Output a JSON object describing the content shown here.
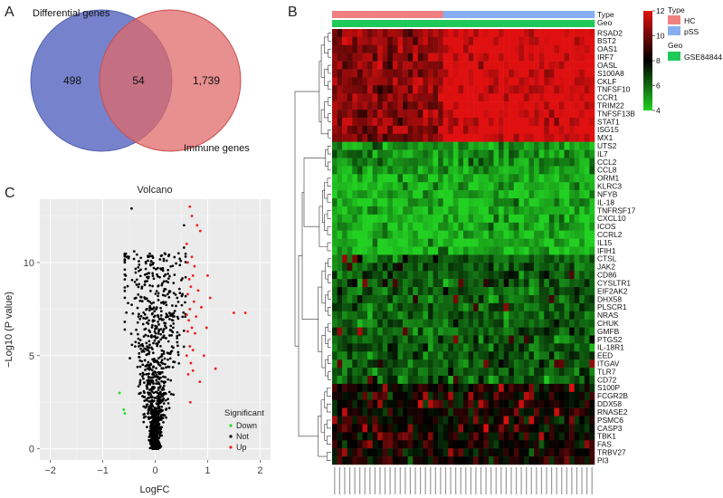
{
  "panels": {
    "a": "A",
    "b": "B",
    "c": "C"
  },
  "colors": {
    "set_differential": "#6a78c8",
    "set_immune": "#e06868",
    "heat_low": "#22d022",
    "heat_mid": "#000000",
    "heat_high": "#e01010",
    "type_hc": "#f08080",
    "type_pss": "#86aef0",
    "geo": "#1ec95a",
    "down": "#22dd22",
    "not": "#000000",
    "up": "#ee1c1c"
  },
  "chart_data": [
    {
      "type": "venn",
      "sets": [
        {
          "name": "Differential genes",
          "only": 498
        },
        {
          "name": "Immune genes",
          "only": 1739
        }
      ],
      "labels": {
        "left_only": "498",
        "intersection": "54",
        "right_only": "1,739"
      },
      "intersection": 54
    },
    {
      "type": "heatmap",
      "annotation_labels": [
        "Type",
        "Geo"
      ],
      "legend": {
        "color_scale": {
          "min": 4,
          "max": 12,
          "ticks": [
            "12",
            "10",
            "8",
            "6",
            "4"
          ]
        },
        "type_title": "Type",
        "type_levels": [
          "HC",
          "pSS"
        ],
        "geo_title": "Geo",
        "geo_levels": [
          "GSE84844"
        ]
      },
      "n_samples_hc": 22,
      "n_samples_pss": 30,
      "cluster_means": [
        11.0,
        5.2,
        4.6,
        6.3,
        8.1
      ],
      "rows": [
        {
          "gene": "RSAD2",
          "cluster": 0
        },
        {
          "gene": "BST2",
          "cluster": 0
        },
        {
          "gene": "OAS1",
          "cluster": 0
        },
        {
          "gene": "IRF7",
          "cluster": 0
        },
        {
          "gene": "OASL",
          "cluster": 0
        },
        {
          "gene": "S100A8",
          "cluster": 0
        },
        {
          "gene": "CKLF",
          "cluster": 0
        },
        {
          "gene": "TNFSF10",
          "cluster": 0
        },
        {
          "gene": "CCR1",
          "cluster": 0
        },
        {
          "gene": "TRIM22",
          "cluster": 0
        },
        {
          "gene": "TNFSF13B",
          "cluster": 0
        },
        {
          "gene": "STAT1",
          "cluster": 0
        },
        {
          "gene": "ISG15",
          "cluster": 0
        },
        {
          "gene": "MX1",
          "cluster": 0
        },
        {
          "gene": "UTS2",
          "cluster": 1
        },
        {
          "gene": "IL7",
          "cluster": 1
        },
        {
          "gene": "CCL2",
          "cluster": 1
        },
        {
          "gene": "CCL8",
          "cluster": 1
        },
        {
          "gene": "ORM1",
          "cluster": 2
        },
        {
          "gene": "KLRC3",
          "cluster": 2
        },
        {
          "gene": "NFYB",
          "cluster": 2
        },
        {
          "gene": "IL-18",
          "cluster": 2
        },
        {
          "gene": "TNFRSF17",
          "cluster": 2
        },
        {
          "gene": "CXCL10",
          "cluster": 2
        },
        {
          "gene": "ICOS",
          "cluster": 2
        },
        {
          "gene": "CCRL2",
          "cluster": 2
        },
        {
          "gene": "IL15",
          "cluster": 2
        },
        {
          "gene": "IFIH1",
          "cluster": 2
        },
        {
          "gene": "CTSL",
          "cluster": 3
        },
        {
          "gene": "JAK2",
          "cluster": 3
        },
        {
          "gene": "CD86",
          "cluster": 3
        },
        {
          "gene": "CYSLTR1",
          "cluster": 3
        },
        {
          "gene": "EIF2AK2",
          "cluster": 3
        },
        {
          "gene": "DHX58",
          "cluster": 3
        },
        {
          "gene": "PLSCR1",
          "cluster": 3
        },
        {
          "gene": "NRAS",
          "cluster": 3
        },
        {
          "gene": "CHUK",
          "cluster": 3
        },
        {
          "gene": "GMFB",
          "cluster": 3
        },
        {
          "gene": "PTGS2",
          "cluster": 3
        },
        {
          "gene": "IL-18R1",
          "cluster": 3
        },
        {
          "gene": "EED",
          "cluster": 3
        },
        {
          "gene": "ITGAV",
          "cluster": 3
        },
        {
          "gene": "TLR7",
          "cluster": 3
        },
        {
          "gene": "CD72",
          "cluster": 3
        },
        {
          "gene": "S100P",
          "cluster": 4
        },
        {
          "gene": "FCGR2B",
          "cluster": 4
        },
        {
          "gene": "DDX58",
          "cluster": 4
        },
        {
          "gene": "RNASE2",
          "cluster": 4
        },
        {
          "gene": "PSMC6",
          "cluster": 4
        },
        {
          "gene": "CASP3",
          "cluster": 4
        },
        {
          "gene": "TBK1",
          "cluster": 4
        },
        {
          "gene": "FAS",
          "cluster": 4
        },
        {
          "gene": "TRBV27",
          "cluster": 4
        },
        {
          "gene": "PI3",
          "cluster": 4
        }
      ]
    },
    {
      "type": "scatter",
      "title": "Volcano",
      "xlabel": "LogFC",
      "ylabel": "−Log10 (P value)",
      "xlim": [
        -2.2,
        2.2
      ],
      "ylim": [
        -0.6,
        13.4
      ],
      "x_ticks": [
        "−2",
        "−1",
        "0",
        "1",
        "2"
      ],
      "x_tick_values": [
        -2,
        -1,
        0,
        1,
        2
      ],
      "y_ticks": [
        "0",
        "5",
        "10"
      ],
      "y_tick_values": [
        0,
        5,
        10
      ],
      "grid": true,
      "legend": {
        "title": "Significant",
        "entries": [
          "Down",
          "Not",
          "Up"
        ],
        "position": "bottom-right"
      },
      "series": [
        {
          "name": "Up",
          "points": [
            [
              0.66,
              13.0
            ],
            [
              0.7,
              12.5
            ],
            [
              0.8,
              12.0
            ],
            [
              0.86,
              11.7
            ],
            [
              0.6,
              11.0
            ],
            [
              0.7,
              10.3
            ],
            [
              0.62,
              10.0
            ],
            [
              0.75,
              9.8
            ],
            [
              0.72,
              9.3
            ],
            [
              0.65,
              9.1
            ],
            [
              1.0,
              9.3
            ],
            [
              0.68,
              8.7
            ],
            [
              0.82,
              8.5
            ],
            [
              1.05,
              8.1
            ],
            [
              0.62,
              8.3
            ],
            [
              0.74,
              7.9
            ],
            [
              0.66,
              7.5
            ],
            [
              0.88,
              7.6
            ],
            [
              0.6,
              7.2
            ],
            [
              0.78,
              7.1
            ],
            [
              1.5,
              7.3
            ],
            [
              1.72,
              7.3
            ],
            [
              0.64,
              6.9
            ],
            [
              0.7,
              6.5
            ],
            [
              0.76,
              6.2
            ],
            [
              0.62,
              6.3
            ],
            [
              0.98,
              6.5
            ],
            [
              0.66,
              5.5
            ],
            [
              0.72,
              5.3
            ],
            [
              0.93,
              5.0
            ],
            [
              0.6,
              5.0
            ],
            [
              0.68,
              4.6
            ],
            [
              1.15,
              4.3
            ],
            [
              0.72,
              4.2
            ],
            [
              0.63,
              4.0
            ],
            [
              0.85,
              3.6
            ],
            [
              0.67,
              2.5
            ]
          ]
        },
        {
          "name": "Down",
          "points": [
            [
              -0.68,
              3.0
            ],
            [
              -0.6,
              2.1
            ],
            [
              -0.58,
              1.9
            ]
          ]
        },
        {
          "name": "Not",
          "sample_size": 1200,
          "x_range": [
            -0.58,
            0.58
          ],
          "y_range": [
            0,
            13
          ]
        }
      ]
    }
  ]
}
